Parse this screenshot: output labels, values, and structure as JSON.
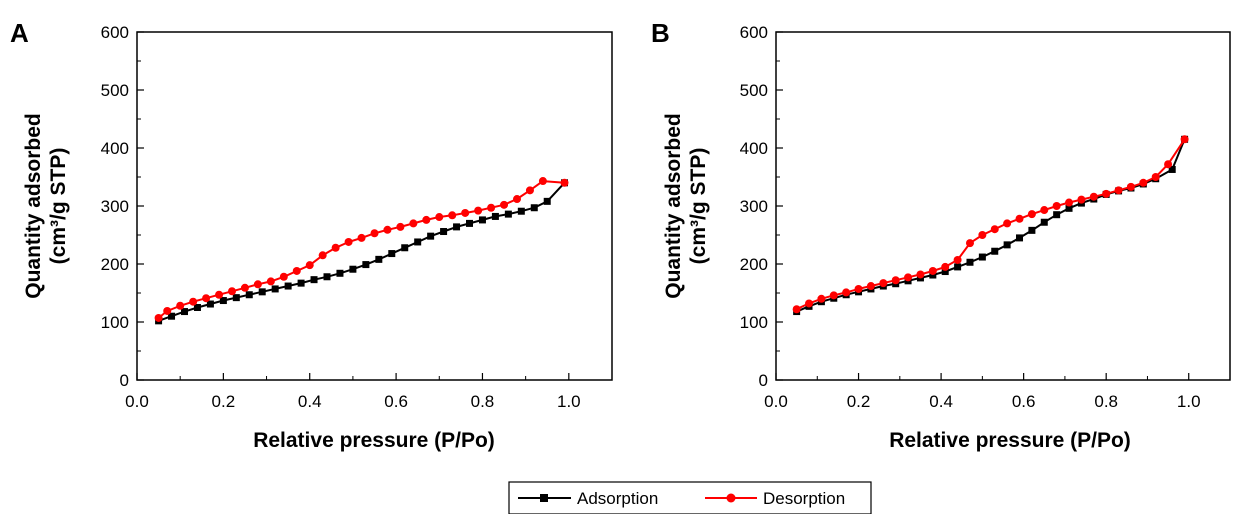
{
  "chart_data": [
    {
      "type": "line",
      "panel_label": "A",
      "xlabel": "Relative pressure (P/Po)",
      "ylabel": "Quantity adsorbed",
      "ylabel2": "(cm³/g STP)",
      "xlim": [
        0,
        1.1
      ],
      "ylim": [
        0,
        600
      ],
      "x_ticks": [
        "0.0",
        "0.2",
        "0.4",
        "0.6",
        "0.8",
        "1.0"
      ],
      "y_ticks": [
        "0",
        "100",
        "200",
        "300",
        "400",
        "500",
        "600"
      ],
      "grid": false,
      "series": [
        {
          "name": "Adsorption",
          "color": "#000000",
          "marker": "square",
          "x": [
            0.05,
            0.08,
            0.11,
            0.14,
            0.17,
            0.2,
            0.23,
            0.26,
            0.29,
            0.32,
            0.35,
            0.38,
            0.41,
            0.44,
            0.47,
            0.5,
            0.53,
            0.56,
            0.59,
            0.62,
            0.65,
            0.68,
            0.71,
            0.74,
            0.77,
            0.8,
            0.83,
            0.86,
            0.89,
            0.92,
            0.95,
            0.99
          ],
          "y": [
            102,
            110,
            118,
            125,
            131,
            137,
            142,
            147,
            152,
            157,
            162,
            167,
            173,
            178,
            184,
            191,
            199,
            208,
            218,
            228,
            238,
            248,
            256,
            264,
            270,
            276,
            282,
            286,
            291,
            297,
            308,
            340
          ]
        },
        {
          "name": "Desorption",
          "color": "#ff0000",
          "marker": "circle",
          "x": [
            0.99,
            0.94,
            0.91,
            0.88,
            0.85,
            0.82,
            0.79,
            0.76,
            0.73,
            0.7,
            0.67,
            0.64,
            0.61,
            0.58,
            0.55,
            0.52,
            0.49,
            0.46,
            0.43,
            0.4,
            0.37,
            0.34,
            0.31,
            0.28,
            0.25,
            0.22,
            0.19,
            0.16,
            0.13,
            0.1,
            0.07,
            0.05
          ],
          "y": [
            340,
            343,
            327,
            312,
            302,
            297,
            292,
            288,
            284,
            281,
            276,
            270,
            264,
            259,
            253,
            245,
            238,
            228,
            215,
            198,
            188,
            178,
            170,
            165,
            159,
            153,
            147,
            141,
            135,
            128,
            119,
            107
          ]
        }
      ]
    },
    {
      "type": "line",
      "panel_label": "B",
      "xlabel": "Relative pressure (P/Po)",
      "ylabel": "Quantity adsorbed",
      "ylabel2": "(cm³/g STP)",
      "xlim": [
        0,
        1.1
      ],
      "ylim": [
        0,
        600
      ],
      "x_ticks": [
        "0.0",
        "0.2",
        "0.4",
        "0.6",
        "0.8",
        "1.0"
      ],
      "y_ticks": [
        "0",
        "100",
        "200",
        "300",
        "400",
        "500",
        "600"
      ],
      "grid": false,
      "series": [
        {
          "name": "Adsorption",
          "color": "#000000",
          "marker": "square",
          "x": [
            0.05,
            0.08,
            0.11,
            0.14,
            0.17,
            0.2,
            0.23,
            0.26,
            0.29,
            0.32,
            0.35,
            0.38,
            0.41,
            0.44,
            0.47,
            0.5,
            0.53,
            0.56,
            0.59,
            0.62,
            0.65,
            0.68,
            0.71,
            0.74,
            0.77,
            0.8,
            0.83,
            0.86,
            0.89,
            0.92,
            0.96,
            0.99
          ],
          "y": [
            118,
            127,
            135,
            141,
            147,
            152,
            157,
            162,
            166,
            171,
            176,
            181,
            187,
            195,
            203,
            212,
            222,
            233,
            245,
            258,
            272,
            285,
            296,
            305,
            312,
            320,
            326,
            331,
            338,
            347,
            363,
            415
          ]
        },
        {
          "name": "Desorption",
          "color": "#ff0000",
          "marker": "circle",
          "x": [
            0.99,
            0.95,
            0.92,
            0.89,
            0.86,
            0.83,
            0.8,
            0.77,
            0.74,
            0.71,
            0.68,
            0.65,
            0.62,
            0.59,
            0.56,
            0.53,
            0.5,
            0.47,
            0.44,
            0.41,
            0.38,
            0.35,
            0.32,
            0.29,
            0.26,
            0.23,
            0.2,
            0.17,
            0.14,
            0.11,
            0.08,
            0.05
          ],
          "y": [
            415,
            372,
            350,
            340,
            333,
            327,
            321,
            316,
            311,
            306,
            300,
            293,
            286,
            278,
            270,
            260,
            250,
            236,
            207,
            195,
            188,
            182,
            177,
            172,
            167,
            162,
            157,
            151,
            146,
            140,
            132,
            122
          ]
        }
      ]
    }
  ],
  "legend": {
    "placement": "bottom-center",
    "entries": [
      {
        "label": "Adsorption",
        "color": "#000000",
        "marker": "square"
      },
      {
        "label": "Desorption",
        "color": "#ff0000",
        "marker": "circle"
      }
    ]
  }
}
